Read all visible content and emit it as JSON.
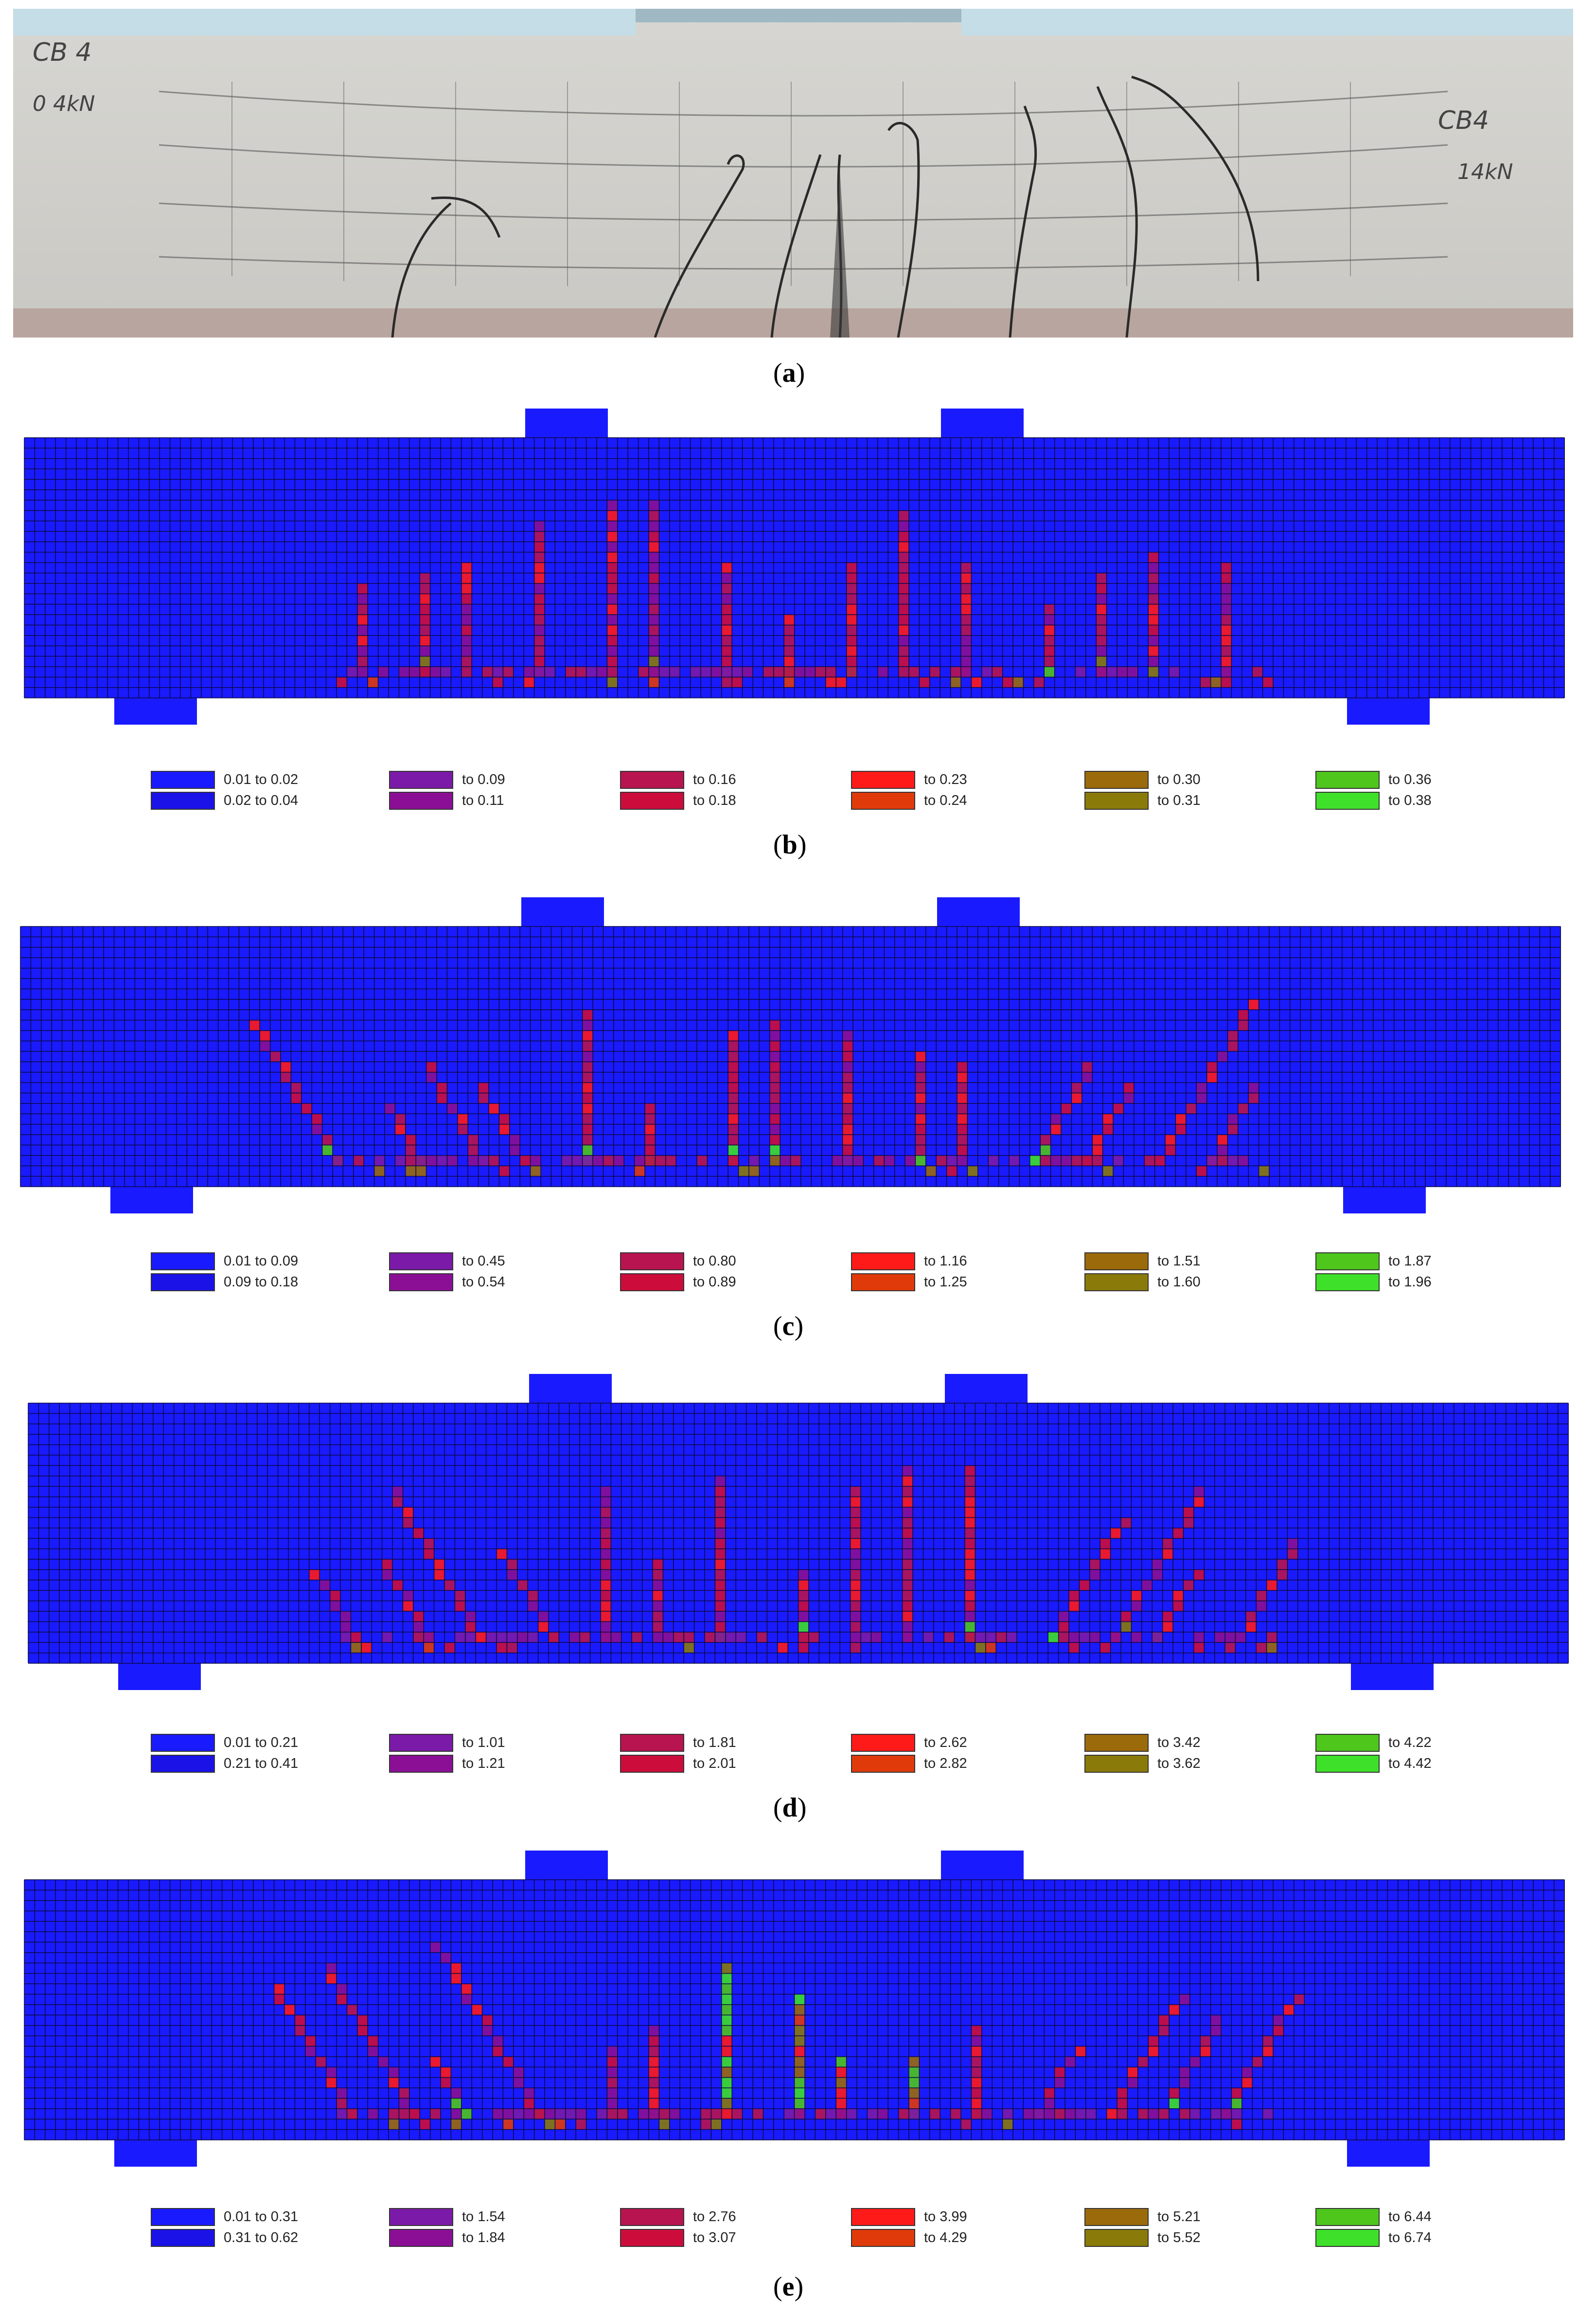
{
  "captions": [
    "a",
    "b",
    "c",
    "d",
    "e"
  ],
  "photo_notes": {
    "left_top": "CB 4",
    "left_bottom": "0 4kN",
    "right_top": "CB4",
    "right_bottom": "14kN"
  },
  "colors": {
    "blue1": "#1a1aff",
    "blue2": "#1a12e6",
    "purple1": "#7b1aa8",
    "purple2": "#8b0f95",
    "crimson1": "#b8144f",
    "crimson2": "#cc0d3c",
    "red1": "#ff1a1a",
    "red2": "#e03a0a",
    "olive1": "#9b6a0a",
    "olive2": "#8a7a0a",
    "green1": "#4ec61c",
    "green2": "#3ee02a"
  },
  "legends": [
    {
      "panel": "b",
      "items": [
        "0.01 to 0.02",
        "0.02 to 0.04",
        "to  0.09",
        "to  0.11",
        "to  0.16",
        "to  0.18",
        "to  0.23",
        "to  0.24",
        "to  0.30",
        "to  0.31",
        "to  0.36",
        "to  0.38"
      ]
    },
    {
      "panel": "c",
      "items": [
        "0.01 to 0.09",
        "0.09 to 0.18",
        "to  0.45",
        "to  0.54",
        "to  0.80",
        "to  0.89",
        "to  1.16",
        "to  1.25",
        "to  1.51",
        "to  1.60",
        "to  1.87",
        "to  1.96"
      ]
    },
    {
      "panel": "d",
      "items": [
        "0.01 to 0.21",
        "0.21 to 0.41",
        "to  1.01",
        "to  1.21",
        "to  1.81",
        "to  2.01",
        "to  2.62",
        "to  2.82",
        "to  3.42",
        "to  3.62",
        "to  4.22",
        "to  4.42"
      ]
    },
    {
      "panel": "e",
      "items": [
        "0.01 to 0.31",
        "0.31 to 0.62",
        "to  1.54",
        "to  1.84",
        "to  2.76",
        "to  3.07",
        "to  3.99",
        "to  4.29",
        "to  5.21",
        "to  5.52",
        "to  6.44",
        "to  6.74"
      ]
    }
  ]
}
